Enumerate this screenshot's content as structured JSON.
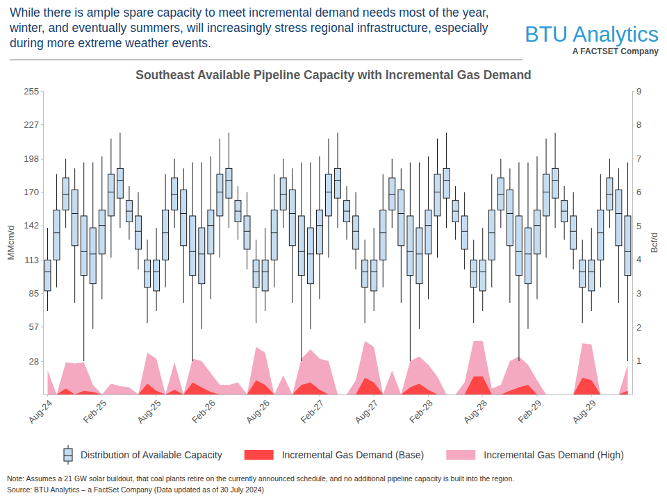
{
  "chart_data": {
    "type": "box",
    "title": "Southeast Available Pipeline Capacity with Incremental Gas Demand",
    "subtitle": "While there is ample spare capacity to meet incremental demand needs most of the year, winter, and eventually summers, will increasingly stress regional infrastructure, especially during more extreme weather events.",
    "logo": {
      "name": "BTU Analytics",
      "tagline": "A FACTSET Company"
    },
    "ylabel": "MMcm/d",
    "y2label": "Bcf/d",
    "notes": [
      "Note: Assumes a 21 GW solar buildout, that coal plants retire on the currently announced schedule, and no additional pipeline capacity is built into the region.",
      "Source: BTU Analytics – a FactSet Company (Data updated as of 30 July 2024)"
    ],
    "categories": [
      "Aug-24",
      null,
      null,
      null,
      null,
      null,
      "Feb-25",
      null,
      null,
      null,
      null,
      null,
      "Aug-25",
      null,
      null,
      null,
      null,
      null,
      "Feb-26",
      null,
      null,
      null,
      null,
      null,
      "Aug-26",
      null,
      null,
      null,
      null,
      null,
      "Feb-27",
      null,
      null,
      null,
      null,
      null,
      "Aug-27",
      null,
      null,
      null,
      null,
      null,
      "Feb-28",
      null,
      null,
      null,
      null,
      null,
      "Aug-28",
      null,
      null,
      null,
      null,
      null,
      "Feb-29",
      null,
      null,
      null,
      null,
      null,
      "Aug-29",
      null,
      null,
      null,
      null
    ],
    "ylim": [
      0,
      255
    ],
    "yticks": [
      28,
      57,
      85,
      113,
      142,
      170,
      198,
      227,
      255
    ],
    "y2lim": [
      0,
      9
    ],
    "y2ticks": [
      1,
      2,
      3,
      4,
      5,
      6,
      7,
      8,
      9
    ],
    "grid": false,
    "legend": "bottom",
    "series": [
      {
        "name": "Distribution of Available Capacity",
        "type": "box",
        "color": "#c6dcf0",
        "min": [
          70,
          90,
          140,
          77,
          28,
          55,
          80,
          115,
          140,
          130,
          105,
          60,
          70,
          90,
          140,
          77,
          28,
          55,
          80,
          115,
          140,
          130,
          105,
          60,
          70,
          90,
          140,
          77,
          28,
          55,
          80,
          115,
          140,
          130,
          105,
          60,
          70,
          90,
          140,
          77,
          28,
          55,
          80,
          115,
          140,
          130,
          105,
          60,
          70,
          90,
          140,
          77,
          28,
          55,
          80,
          115,
          140,
          130,
          105,
          60,
          70,
          90,
          140,
          77,
          28
        ],
        "q1": [
          87,
          113,
          155,
          125,
          100,
          93,
          118,
          150,
          165,
          145,
          122,
          90,
          87,
          113,
          155,
          125,
          100,
          93,
          118,
          150,
          165,
          145,
          122,
          90,
          87,
          113,
          155,
          125,
          100,
          93,
          118,
          150,
          165,
          145,
          122,
          90,
          87,
          113,
          155,
          125,
          100,
          93,
          118,
          150,
          165,
          145,
          122,
          90,
          87,
          113,
          155,
          125,
          100,
          93,
          118,
          150,
          165,
          145,
          122,
          90,
          87,
          113,
          155,
          125,
          100
        ],
        "median": [
          103,
          136,
          168,
          152,
          120,
          118,
          142,
          170,
          180,
          154,
          137,
          103,
          103,
          136,
          168,
          152,
          120,
          118,
          142,
          170,
          180,
          154,
          137,
          103,
          103,
          136,
          168,
          152,
          120,
          118,
          142,
          170,
          180,
          154,
          137,
          103,
          103,
          136,
          168,
          152,
          120,
          118,
          142,
          170,
          180,
          154,
          137,
          103,
          103,
          136,
          168,
          152,
          120,
          118,
          142,
          170,
          180,
          154,
          137,
          103,
          103,
          136,
          168,
          152,
          120
        ],
        "q3": [
          113,
          155,
          182,
          172,
          150,
          140,
          155,
          185,
          190,
          163,
          150,
          113,
          113,
          155,
          182,
          172,
          150,
          140,
          155,
          185,
          190,
          163,
          150,
          113,
          113,
          155,
          182,
          172,
          150,
          140,
          155,
          185,
          190,
          163,
          150,
          113,
          113,
          155,
          182,
          172,
          150,
          140,
          155,
          185,
          190,
          163,
          150,
          113,
          113,
          155,
          182,
          172,
          150,
          140,
          155,
          185,
          190,
          163,
          150,
          113,
          113,
          155,
          182,
          172,
          150
        ],
        "max": [
          140,
          185,
          198,
          190,
          195,
          195,
          200,
          215,
          220,
          175,
          170,
          130,
          140,
          185,
          198,
          190,
          195,
          195,
          200,
          215,
          220,
          175,
          170,
          130,
          140,
          185,
          198,
          190,
          195,
          195,
          200,
          215,
          220,
          175,
          170,
          130,
          140,
          185,
          198,
          190,
          195,
          195,
          200,
          215,
          220,
          175,
          170,
          130,
          140,
          185,
          198,
          190,
          195,
          195,
          200,
          215,
          220,
          175,
          170,
          130,
          140,
          185,
          198,
          190,
          195
        ]
      },
      {
        "name": "Incremental Gas Demand (Base)",
        "type": "area",
        "color": "#ff4646",
        "values": [
          0,
          0,
          5,
          0,
          3,
          2,
          0,
          0,
          0,
          0,
          0,
          9,
          3,
          0,
          4,
          0,
          10,
          6,
          2,
          0,
          0,
          0,
          0,
          12,
          8,
          0,
          0,
          0,
          8,
          10,
          4,
          0,
          0,
          0,
          0,
          14,
          10,
          0,
          0,
          0,
          6,
          9,
          4,
          0,
          0,
          0,
          0,
          15,
          15,
          0,
          0,
          3,
          6,
          8,
          0,
          0,
          0,
          0,
          0,
          14,
          12,
          0,
          0,
          0,
          3
        ]
      },
      {
        "name": "Incremental Gas Demand (High)",
        "type": "area",
        "color": "#f4a9c0",
        "values": [
          20,
          0,
          27,
          26,
          27,
          8,
          0,
          9,
          7,
          6,
          0,
          35,
          30,
          0,
          27,
          0,
          30,
          28,
          18,
          8,
          8,
          10,
          0,
          40,
          35,
          0,
          16,
          0,
          30,
          38,
          30,
          28,
          0,
          0,
          12,
          45,
          40,
          0,
          20,
          0,
          28,
          32,
          25,
          15,
          0,
          0,
          10,
          45,
          45,
          5,
          8,
          28,
          32,
          25,
          12,
          0,
          0,
          0,
          0,
          43,
          42,
          0,
          0,
          0,
          25
        ]
      }
    ]
  }
}
